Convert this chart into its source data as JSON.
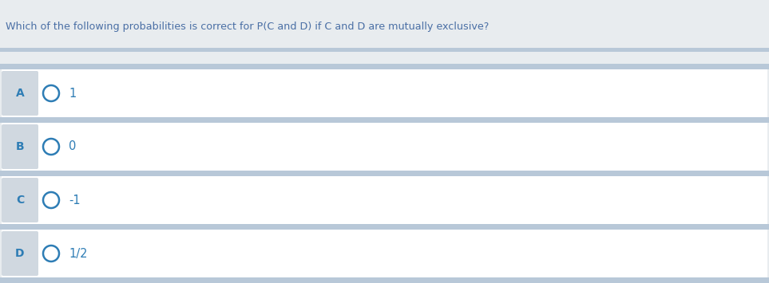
{
  "question": "Which of the following probabilities is correct for P(C and D) if C and D are mutually exclusive?",
  "question_color": "#4a6fa5",
  "options": [
    {
      "label": "A",
      "value": "1"
    },
    {
      "label": "B",
      "value": "0"
    },
    {
      "label": "C",
      "value": "-1"
    },
    {
      "label": "D",
      "value": "1/2"
    }
  ],
  "bg_color_top": "#e8ecef",
  "bg_color_main": "#d6dde6",
  "option_bg_color": "#ffffff",
  "option_label_bg": "#d0d8e0",
  "label_color": "#2e7db5",
  "circle_color": "#2e7db5",
  "value_color": "#2e7db5",
  "separator_color": "#b8c8d8",
  "fig_width": 9.63,
  "fig_height": 3.55,
  "dpi": 100
}
